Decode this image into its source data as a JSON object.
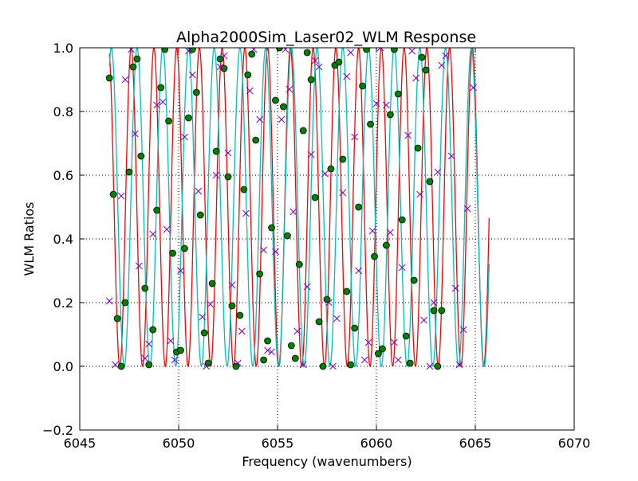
{
  "chart_data": {
    "type": "line",
    "title": "Alpha2000Sim_Laser02_WLM Response",
    "xlabel": "Frequency (wavenumbers)",
    "ylabel": "WLM Ratios",
    "xlim": [
      6045,
      6070
    ],
    "ylim": [
      -0.2,
      1.0
    ],
    "xticks": [
      "6045",
      "6050",
      "6055",
      "6060",
      "6065",
      "6070"
    ],
    "xtick_values": [
      6045,
      6050,
      6055,
      6060,
      6065,
      6070
    ],
    "yticks": [
      "−0.2",
      "0.0",
      "0.2",
      "0.4",
      "0.6",
      "0.8",
      "1.0"
    ],
    "ytick_values": [
      -0.2,
      0.0,
      0.2,
      0.4,
      0.6,
      0.8,
      1.0
    ],
    "grid": true,
    "x_range": [
      6046.5,
      6065.7
    ],
    "series": [
      {
        "kind": "curve",
        "color": "#ff0000",
        "period": 1.15,
        "phase_x_of_peak": 6047.6,
        "x": [
          6046.5,
          6065.7
        ]
      },
      {
        "kind": "curve",
        "color": "#00bfbf",
        "period": 1.3,
        "phase_x_of_peak": 6047.9,
        "x": [
          6046.5,
          6065.7
        ]
      },
      {
        "kind": "markers",
        "marker": "circle",
        "color": "#008000",
        "points": [
          [
            6046.5,
            0.905
          ],
          [
            6046.7,
            0.54
          ],
          [
            6046.9,
            0.15
          ],
          [
            6047.1,
            0.0
          ],
          [
            6047.3,
            0.2
          ],
          [
            6047.5,
            0.61
          ],
          [
            6047.7,
            0.94
          ],
          [
            6047.9,
            0.965
          ],
          [
            6048.1,
            0.66
          ],
          [
            6048.3,
            0.245
          ],
          [
            6048.5,
            0.005
          ],
          [
            6048.7,
            0.115
          ],
          [
            6048.9,
            0.49
          ],
          [
            6049.1,
            0.875
          ],
          [
            6049.3,
            0.995
          ],
          [
            6049.5,
            0.77
          ],
          [
            6049.7,
            0.355
          ],
          [
            6049.9,
            0.045
          ],
          [
            6050.1,
            0.05
          ],
          [
            6050.3,
            0.37
          ],
          [
            6050.5,
            0.78
          ],
          [
            6050.7,
            0.995
          ],
          [
            6050.9,
            0.86
          ],
          [
            6051.1,
            0.475
          ],
          [
            6051.3,
            0.105
          ],
          [
            6051.5,
            0.01
          ],
          [
            6051.7,
            0.26
          ],
          [
            6051.9,
            0.675
          ],
          [
            6052.1,
            0.965
          ],
          [
            6052.3,
            0.935
          ],
          [
            6052.5,
            0.595
          ],
          [
            6052.7,
            0.19
          ],
          [
            6052.9,
            0.0
          ],
          [
            6053.1,
            0.16
          ],
          [
            6053.3,
            0.555
          ],
          [
            6053.5,
            0.915
          ],
          [
            6053.7,
            0.98
          ],
          [
            6053.9,
            0.71
          ],
          [
            6054.1,
            0.29
          ],
          [
            6054.3,
            0.02
          ],
          [
            6054.5,
            0.08
          ],
          [
            6054.7,
            0.435
          ],
          [
            6054.9,
            0.835
          ],
          [
            6055.1,
            1.0
          ],
          [
            6055.3,
            0.815
          ],
          [
            6055.5,
            0.41
          ],
          [
            6055.7,
            0.065
          ],
          [
            6055.9,
            0.025
          ],
          [
            6056.1,
            0.32
          ],
          [
            6056.3,
            0.74
          ],
          [
            6056.5,
            0.985
          ],
          [
            6056.7,
            0.9
          ],
          [
            6056.9,
            0.53
          ],
          [
            6057.1,
            0.14
          ],
          [
            6057.3,
            0.0
          ],
          [
            6057.5,
            0.21
          ],
          [
            6057.7,
            0.62
          ],
          [
            6057.9,
            0.945
          ],
          [
            6058.1,
            0.955
          ],
          [
            6058.3,
            0.65
          ],
          [
            6058.5,
            0.235
          ],
          [
            6058.7,
            0.005
          ],
          [
            6058.9,
            0.12
          ],
          [
            6059.1,
            0.5
          ],
          [
            6059.3,
            0.88
          ],
          [
            6059.5,
            0.995
          ],
          [
            6059.7,
            0.76
          ],
          [
            6059.9,
            0.345
          ],
          [
            6060.1,
            0.04
          ],
          [
            6060.3,
            0.055
          ],
          [
            6060.5,
            0.38
          ],
          [
            6060.7,
            0.79
          ],
          [
            6060.9,
            0.995
          ],
          [
            6061.1,
            0.855
          ],
          [
            6061.3,
            0.46
          ],
          [
            6061.5,
            0.095
          ],
          [
            6061.7,
            0.01
          ],
          [
            6061.9,
            0.27
          ],
          [
            6062.1,
            0.685
          ],
          [
            6062.3,
            0.97
          ],
          [
            6062.5,
            0.93
          ],
          [
            6062.7,
            0.58
          ],
          [
            6062.9,
            0.175
          ],
          [
            6063.1,
            0.0
          ],
          [
            6063.3,
            0.175
          ]
        ]
      },
      {
        "kind": "markers",
        "marker": "x",
        "color": "#7f00bf",
        "points": [
          [
            6046.5,
            0.205
          ],
          [
            6046.8,
            0.005
          ],
          [
            6047.1,
            0.535
          ],
          [
            6047.3,
            0.9
          ],
          [
            6047.6,
            0.995
          ],
          [
            6047.8,
            0.73
          ],
          [
            6048.0,
            0.315
          ],
          [
            6048.3,
            0.025
          ],
          [
            6048.5,
            0.07
          ],
          [
            6048.7,
            0.415
          ],
          [
            6048.9,
            0.82
          ],
          [
            6049.2,
            0.83
          ],
          [
            6049.4,
            0.43
          ],
          [
            6049.6,
            0.08
          ],
          [
            6049.8,
            0.02
          ],
          [
            6050.1,
            0.3
          ],
          [
            6050.3,
            0.72
          ],
          [
            6050.5,
            0.99
          ],
          [
            6050.7,
            0.915
          ],
          [
            6051.0,
            0.55
          ],
          [
            6051.2,
            0.155
          ],
          [
            6051.4,
            0.0
          ],
          [
            6051.6,
            0.195
          ],
          [
            6051.9,
            0.6
          ],
          [
            6052.1,
            0.94
          ],
          [
            6052.3,
            0.975
          ],
          [
            6052.5,
            0.67
          ],
          [
            6052.7,
            0.255
          ],
          [
            6053.0,
            0.01
          ],
          [
            6053.2,
            0.11
          ],
          [
            6053.4,
            0.48
          ],
          [
            6053.6,
            0.865
          ],
          [
            6053.8,
            0.995
          ],
          [
            6054.1,
            0.775
          ],
          [
            6054.3,
            0.365
          ],
          [
            6054.5,
            0.05
          ],
          [
            6054.7,
            0.045
          ],
          [
            6054.9,
            0.36
          ],
          [
            6055.2,
            0.775
          ],
          [
            6055.4,
            0.995
          ],
          [
            6055.6,
            0.87
          ],
          [
            6055.8,
            0.485
          ],
          [
            6056.0,
            0.11
          ],
          [
            6056.3,
            0.005
          ],
          [
            6056.5,
            0.25
          ],
          [
            6056.7,
            0.665
          ],
          [
            6056.9,
            0.96
          ],
          [
            6057.1,
            0.94
          ],
          [
            6057.4,
            0.605
          ],
          [
            6057.6,
            0.2
          ],
          [
            6057.8,
            0.0
          ],
          [
            6058.0,
            0.15
          ],
          [
            6058.3,
            0.545
          ],
          [
            6058.5,
            0.91
          ],
          [
            6058.7,
            0.985
          ],
          [
            6058.9,
            0.72
          ],
          [
            6059.1,
            0.3
          ],
          [
            6059.4,
            0.02
          ],
          [
            6059.6,
            0.075
          ],
          [
            6059.8,
            0.425
          ],
          [
            6060.0,
            0.825
          ],
          [
            6060.2,
            1.0
          ],
          [
            6060.5,
            0.82
          ],
          [
            6060.7,
            0.42
          ],
          [
            6060.9,
            0.075
          ],
          [
            6061.1,
            0.02
          ],
          [
            6061.3,
            0.31
          ],
          [
            6061.6,
            0.725
          ],
          [
            6061.8,
            0.99
          ],
          [
            6062.0,
            0.905
          ],
          [
            6062.2,
            0.54
          ],
          [
            6062.4,
            0.145
          ],
          [
            6062.7,
            0.0
          ],
          [
            6062.9,
            0.2
          ],
          [
            6063.1,
            0.61
          ],
          [
            6063.3,
            0.945
          ],
          [
            6063.5,
            0.975
          ],
          [
            6063.8,
            0.66
          ],
          [
            6064.0,
            0.245
          ],
          [
            6064.2,
            0.005
          ],
          [
            6064.4,
            0.115
          ],
          [
            6064.6,
            0.495
          ],
          [
            6064.9,
            0.875
          ]
        ]
      }
    ]
  }
}
